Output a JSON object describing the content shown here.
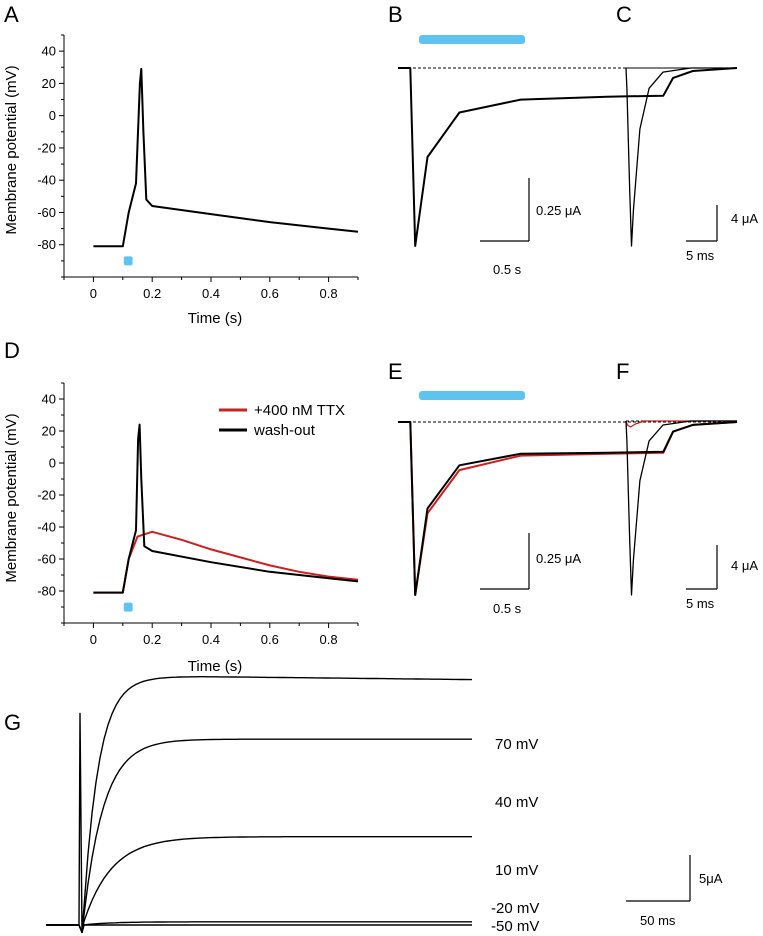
{
  "colors": {
    "black": "#000000",
    "red": "#cc1f1f",
    "stim": "#5ec3ee"
  },
  "panels": {
    "A": {
      "letter": "A"
    },
    "B": {
      "letter": "B"
    },
    "C": {
      "letter": "C"
    },
    "D": {
      "letter": "D"
    },
    "E": {
      "letter": "E"
    },
    "F": {
      "letter": "F"
    },
    "G": {
      "letter": "G"
    }
  },
  "chart_data": [
    {
      "panel": "A",
      "type": "line",
      "xlabel": "Time (s)",
      "ylabel": "Membrane potential (mV)",
      "xlim": [
        -0.1,
        0.9
      ],
      "ylim": [
        -100,
        50
      ],
      "x_ticks": [
        "0",
        "0.2",
        "0.4",
        "0.6",
        "0.8"
      ],
      "y_ticks": [
        "40",
        "20",
        "0",
        "-20",
        "-40",
        "-60",
        "-80"
      ],
      "stimulus": {
        "start": 0.1,
        "end": 0.13
      },
      "series": [
        {
          "color": "#000000",
          "points": [
            [
              0,
              -81
            ],
            [
              0.1,
              -81
            ],
            [
              0.12,
              -60
            ],
            [
              0.145,
              -42
            ],
            [
              0.158,
              20
            ],
            [
              0.163,
              29
            ],
            [
              0.17,
              -10
            ],
            [
              0.18,
              -52
            ],
            [
              0.2,
              -56
            ],
            [
              0.4,
              -61
            ],
            [
              0.6,
              -66
            ],
            [
              0.8,
              -70
            ],
            [
              0.9,
              -72
            ]
          ]
        }
      ]
    },
    {
      "panel": "B",
      "type": "line",
      "scale_bar_y": "0.25 μA",
      "scale_bar_x": "0.5 s",
      "stimulus": true,
      "series": [
        {
          "color": "#000000",
          "note": "current trace",
          "points": [
            [
              0,
              0
            ],
            [
              0.05,
              0
            ],
            [
              0.07,
              -1.8
            ],
            [
              0.12,
              -0.9
            ],
            [
              0.25,
              -0.45
            ],
            [
              0.5,
              -0.32
            ],
            [
              0.85,
              -0.29
            ],
            [
              1.08,
              -0.28
            ],
            [
              1.12,
              -0.1
            ],
            [
              1.2,
              -0.03
            ],
            [
              1.38,
              0
            ]
          ]
        }
      ]
    },
    {
      "panel": "C",
      "type": "line",
      "scale_bar_y": "4 μA",
      "scale_bar_x": "5 ms",
      "series": [
        {
          "color": "#000000",
          "points": [
            [
              0,
              0
            ],
            [
              0.2,
              -2
            ],
            [
              0.8,
              -12
            ],
            [
              1.2,
              -17.5
            ],
            [
              1.6,
              -14
            ],
            [
              3,
              -6
            ],
            [
              5,
              -2
            ],
            [
              8,
              -0.4
            ],
            [
              14,
              0
            ],
            [
              24,
              0
            ]
          ]
        }
      ]
    },
    {
      "panel": "D",
      "type": "line",
      "xlabel": "Time (s)",
      "ylabel": "Membrane potential (mV)",
      "xlim": [
        -0.1,
        0.9
      ],
      "ylim": [
        -100,
        50
      ],
      "x_ticks": [
        "0",
        "0.2",
        "0.4",
        "0.6",
        "0.8"
      ],
      "y_ticks": [
        "40",
        "20",
        "0",
        "-20",
        "-40",
        "-60",
        "-80"
      ],
      "stimulus": {
        "start": 0.1,
        "end": 0.13
      },
      "legend": "top-right",
      "series": [
        {
          "name": "+400 nM TTX",
          "color": "#cc1f1f",
          "points": [
            [
              0,
              -81
            ],
            [
              0.1,
              -81
            ],
            [
              0.12,
              -60
            ],
            [
              0.15,
              -46
            ],
            [
              0.2,
              -43
            ],
            [
              0.3,
              -48
            ],
            [
              0.4,
              -54
            ],
            [
              0.5,
              -59
            ],
            [
              0.6,
              -64
            ],
            [
              0.7,
              -68
            ],
            [
              0.8,
              -71
            ],
            [
              0.9,
              -73
            ]
          ]
        },
        {
          "name": "wash-out",
          "color": "#000000",
          "points": [
            [
              0,
              -81
            ],
            [
              0.1,
              -81
            ],
            [
              0.12,
              -60
            ],
            [
              0.145,
              -42
            ],
            [
              0.152,
              15
            ],
            [
              0.157,
              24
            ],
            [
              0.163,
              -10
            ],
            [
              0.173,
              -52
            ],
            [
              0.2,
              -55
            ],
            [
              0.4,
              -62
            ],
            [
              0.6,
              -68
            ],
            [
              0.8,
              -72
            ],
            [
              0.9,
              -74
            ]
          ]
        }
      ]
    },
    {
      "panel": "E",
      "type": "line",
      "scale_bar_y": "0.25 μA",
      "scale_bar_x": "0.5 s",
      "stimulus": true,
      "series": [
        {
          "color": "#cc1f1f",
          "points": [
            [
              0,
              0
            ],
            [
              0.05,
              0
            ],
            [
              0.07,
              -1.8
            ],
            [
              0.12,
              -0.95
            ],
            [
              0.25,
              -0.5
            ],
            [
              0.5,
              -0.35
            ],
            [
              0.85,
              -0.33
            ],
            [
              1.08,
              -0.32
            ],
            [
              1.12,
              -0.1
            ],
            [
              1.2,
              -0.03
            ],
            [
              1.38,
              0
            ]
          ]
        },
        {
          "color": "#000000",
          "points": [
            [
              0,
              0
            ],
            [
              0.05,
              0
            ],
            [
              0.07,
              -1.8
            ],
            [
              0.12,
              -0.9
            ],
            [
              0.25,
              -0.45
            ],
            [
              0.5,
              -0.33
            ],
            [
              0.85,
              -0.32
            ],
            [
              1.08,
              -0.31
            ],
            [
              1.12,
              -0.1
            ],
            [
              1.2,
              -0.03
            ],
            [
              1.38,
              0
            ]
          ]
        }
      ]
    },
    {
      "panel": "F",
      "type": "line",
      "scale_bar_y": "4 μA",
      "scale_bar_x": "5 ms",
      "series": [
        {
          "color": "#cc1f1f",
          "points": [
            [
              0,
              0
            ],
            [
              0.3,
              -0.4
            ],
            [
              1,
              -0.6
            ],
            [
              2,
              -0.3
            ],
            [
              4,
              0
            ],
            [
              24,
              0
            ]
          ]
        },
        {
          "color": "#000000",
          "points": [
            [
              0,
              0
            ],
            [
              0.2,
              -2
            ],
            [
              0.8,
              -12
            ],
            [
              1.2,
              -17.5
            ],
            [
              1.6,
              -14
            ],
            [
              3,
              -6
            ],
            [
              5,
              -2
            ],
            [
              8,
              -0.4
            ],
            [
              14,
              0
            ],
            [
              24,
              0
            ]
          ]
        }
      ]
    },
    {
      "panel": "G",
      "type": "line",
      "scale_bar_y": "5μA",
      "scale_bar_x": "50 ms",
      "trace_labels": [
        "70 mV",
        "40 mV",
        "10 mV",
        "-20 mV",
        "-50 mV"
      ],
      "series": [
        {
          "name": "70 mV",
          "plateau": 27.0,
          "tau": 12
        },
        {
          "name": "40 mV",
          "plateau": 20.2,
          "tau": 16
        },
        {
          "name": "10 mV",
          "plateau": 9.6,
          "tau": 22
        },
        {
          "name": "-20 mV",
          "plateau": 0.35,
          "tau": 22
        },
        {
          "name": "-50 mV",
          "plateau": 0.0,
          "tau": 22
        }
      ]
    }
  ]
}
